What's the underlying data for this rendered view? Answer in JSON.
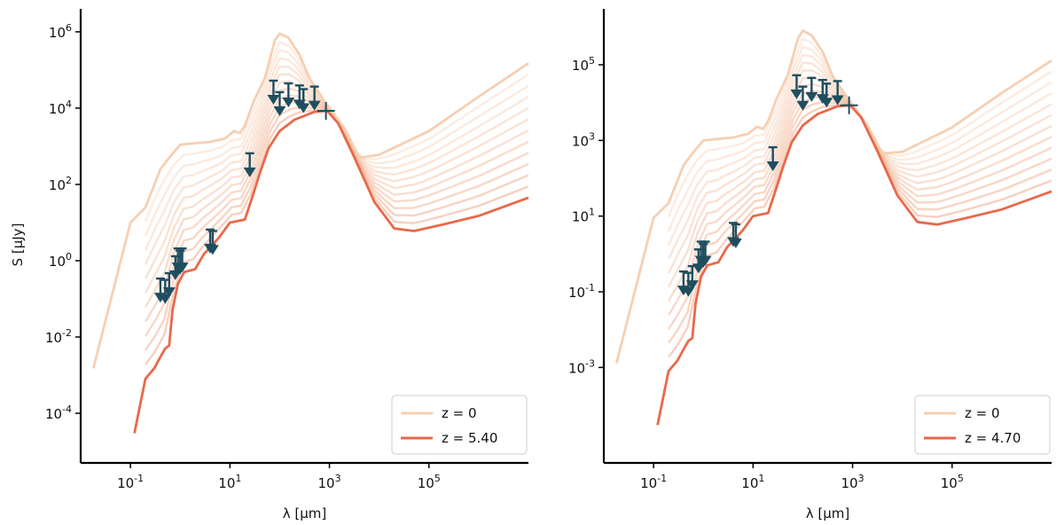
{
  "chart_data": [
    {
      "type": "line",
      "xlabel": "λ [μm]",
      "ylabel": "S [μJy]",
      "xscale": "log",
      "yscale": "log",
      "xlim": [
        0.01,
        10000000
      ],
      "ylim": [
        5e-06,
        4000000
      ],
      "xticks": [
        {
          "v": 0.1,
          "b": "10",
          "e": "-1"
        },
        {
          "v": 10,
          "b": "10",
          "e": "1"
        },
        {
          "v": 1000,
          "b": "10",
          "e": "3"
        },
        {
          "v": 100000,
          "b": "10",
          "e": "5"
        }
      ],
      "yticks": [
        {
          "v": 0.0001,
          "b": "10",
          "e": "-4"
        },
        {
          "v": 0.01,
          "b": "10",
          "e": "-2"
        },
        {
          "v": 1,
          "b": "10",
          "e": "0"
        },
        {
          "v": 100,
          "b": "10",
          "e": "2"
        },
        {
          "v": 10000,
          "b": "10",
          "e": "4"
        },
        {
          "v": 1000000,
          "b": "10",
          "e": "6"
        }
      ],
      "legend": [
        {
          "label": "z = 0",
          "color": "#f6cfb2"
        },
        {
          "label": "z = 5.40",
          "color": "#e8694a"
        }
      ],
      "legend_position": "lower-right",
      "background_curve_count": 11,
      "series": [
        {
          "name": "z = 0",
          "color": "#f6cfb2",
          "x": [
            0.018,
            0.1,
            0.2,
            0.4,
            0.6,
            1.0,
            2.0,
            4.0,
            8.0,
            12,
            16,
            20,
            30,
            50,
            80,
            100,
            150,
            250,
            400,
            800,
            2000,
            4000,
            10000,
            100000,
            1000000,
            10000000
          ],
          "y": [
            0.0015,
            10,
            25,
            250,
            500,
            1100,
            1200,
            1300,
            1600,
            2500,
            2200,
            3500,
            15000,
            60000,
            600000,
            900000,
            700000,
            250000,
            60000,
            15000,
            3000,
            500,
            600,
            2500,
            20000,
            150000
          ]
        },
        {
          "name": "z = 5.40",
          "color": "#e8694a",
          "x": [
            0.12,
            0.2,
            0.3,
            0.4,
            0.5,
            0.6,
            0.7,
            0.9,
            1.2,
            2.0,
            3.0,
            6.0,
            10,
            20,
            30,
            40,
            60,
            100,
            200,
            500,
            900,
            1500,
            3000,
            8000,
            20000,
            50000,
            200000,
            1000000,
            10000000
          ],
          "y": [
            3e-05,
            0.0008,
            0.0015,
            0.003,
            0.005,
            0.006,
            0.05,
            0.25,
            0.5,
            0.6,
            1.5,
            4,
            10,
            12,
            60,
            200,
            900,
            2500,
            5000,
            8000,
            8500,
            4000,
            600,
            35,
            7,
            6,
            9,
            15,
            45
          ]
        }
      ],
      "upper_limits": {
        "color": "#1f4e5f",
        "x": [
          0.4,
          0.5,
          0.6,
          0.8,
          0.9,
          1.0,
          1.1,
          4.0,
          4.5,
          25,
          75,
          100,
          150,
          250,
          300,
          500
        ],
        "y": [
          0.13,
          0.12,
          0.18,
          0.5,
          0.8,
          0.7,
          0.8,
          2.5,
          2.3,
          250,
          20000,
          10000,
          17000,
          15000,
          12000,
          14000
        ]
      },
      "detection": {
        "x": 850,
        "y": 8500
      }
    },
    {
      "type": "line",
      "xlabel": "λ [μm]",
      "ylabel": "",
      "xscale": "log",
      "yscale": "log",
      "xlim": [
        0.01,
        10000000
      ],
      "ylim": [
        3e-06,
        3000000
      ],
      "xticks": [
        {
          "v": 0.1,
          "b": "10",
          "e": "-1"
        },
        {
          "v": 10,
          "b": "10",
          "e": "1"
        },
        {
          "v": 1000,
          "b": "10",
          "e": "3"
        },
        {
          "v": 100000,
          "b": "10",
          "e": "5"
        }
      ],
      "yticks": [
        {
          "v": 0.001,
          "b": "10",
          "e": "-3"
        },
        {
          "v": 0.1,
          "b": "10",
          "e": "-1"
        },
        {
          "v": 10,
          "b": "10",
          "e": "1"
        },
        {
          "v": 1000,
          "b": "10",
          "e": "3"
        },
        {
          "v": 100000,
          "b": "10",
          "e": "5"
        }
      ],
      "legend": [
        {
          "label": "z = 0",
          "color": "#f6cfb2"
        },
        {
          "label": "z = 4.70",
          "color": "#e8694a"
        }
      ],
      "legend_position": "lower-right",
      "background_curve_count": 11,
      "series": [
        {
          "name": "z = 0",
          "color": "#f6cfb2",
          "x": [
            0.018,
            0.1,
            0.2,
            0.4,
            0.6,
            1.0,
            2.0,
            4.0,
            8.0,
            12,
            16,
            20,
            30,
            50,
            80,
            100,
            150,
            250,
            400,
            800,
            2000,
            4000,
            10000,
            100000,
            1000000,
            10000000
          ],
          "y": [
            0.0013,
            9,
            22,
            220,
            450,
            1000,
            1100,
            1200,
            1500,
            2300,
            2000,
            3200,
            13000,
            55000,
            500000,
            800000,
            600000,
            220000,
            50000,
            13000,
            2500,
            450,
            500,
            2200,
            18000,
            130000
          ]
        },
        {
          "name": "z = 4.70",
          "color": "#e8694a",
          "x": [
            0.12,
            0.2,
            0.3,
            0.4,
            0.5,
            0.6,
            0.7,
            0.9,
            1.2,
            2.0,
            3.0,
            6.0,
            10,
            20,
            30,
            40,
            60,
            100,
            200,
            500,
            900,
            1500,
            3000,
            8000,
            20000,
            50000,
            200000,
            1000000,
            10000000
          ],
          "y": [
            3e-05,
            0.0008,
            0.0015,
            0.003,
            0.005,
            0.006,
            0.05,
            0.25,
            0.5,
            0.6,
            1.5,
            4,
            10,
            12,
            60,
            200,
            900,
            2500,
            5000,
            8000,
            8500,
            4000,
            600,
            35,
            7,
            6,
            9,
            15,
            45
          ]
        }
      ],
      "upper_limits": {
        "color": "#1f4e5f",
        "x": [
          0.4,
          0.5,
          0.6,
          0.8,
          0.9,
          1.0,
          1.1,
          4.0,
          4.5,
          25,
          75,
          100,
          150,
          250,
          300,
          500
        ],
        "y": [
          0.13,
          0.12,
          0.18,
          0.5,
          0.8,
          0.7,
          0.8,
          2.5,
          2.3,
          250,
          20000,
          10000,
          17000,
          15000,
          12000,
          14000
        ]
      },
      "detection": {
        "x": 850,
        "y": 8500
      }
    }
  ]
}
